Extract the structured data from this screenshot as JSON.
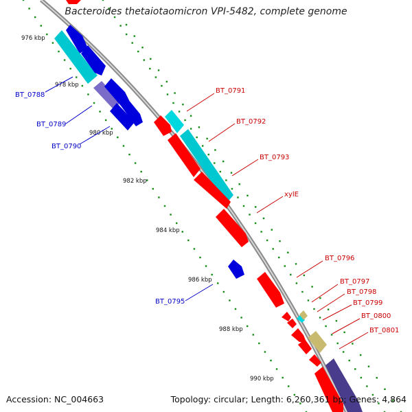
{
  "title": "Bacteroides thetaiotaomicron VPI-5482, complete genome",
  "footer": {
    "accession_prefix": "Accession: ",
    "accession": "NC_004663",
    "topology_prefix": "Topology: ",
    "topology": "circular",
    "length_prefix": "; Length: ",
    "length": "6,260,361 bp",
    "genes_prefix": "; Genes: ",
    "genes": "4,864"
  },
  "colors": {
    "forward_gene": "#ff0000",
    "reverse_gene": "#0000dd",
    "cyan_gene": "#00c8d0",
    "light_cyan_gene": "#00d8e0",
    "purple_gene": "#7a6cc8",
    "khaki_gene": "#c8bb70",
    "backbone": "#8a8a8a",
    "tick": "#138a13",
    "forward_label": "#cc0000",
    "reverse_label": "#0000cc"
  },
  "scale_ticks": [
    {
      "label": "976 kbp",
      "kbp": 976
    },
    {
      "label": "978 kbp",
      "kbp": 978
    },
    {
      "label": "980 kbp",
      "kbp": 980
    },
    {
      "label": "982 kbp",
      "kbp": 982
    },
    {
      "label": "984 kbp",
      "kbp": 984
    },
    {
      "label": "986 kbp",
      "kbp": 986
    },
    {
      "label": "988 kbp",
      "kbp": 988
    },
    {
      "label": "990 kbp",
      "kbp": 990
    }
  ],
  "gene_labels_forward": [
    "BT_0791",
    "BT_0792",
    "BT_0793",
    "xylE",
    "BT_0796",
    "BT_0797",
    "BT_0798",
    "BT_0799",
    "BT_0800",
    "BT_0801"
  ],
  "gene_labels_reverse": [
    "BT_0788",
    "BT_0789",
    "BT_0790",
    "BT_0795"
  ]
}
